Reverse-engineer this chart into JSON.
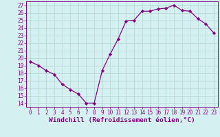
{
  "x": [
    0,
    1,
    2,
    3,
    4,
    5,
    6,
    7,
    8,
    9,
    10,
    11,
    12,
    13,
    14,
    15,
    16,
    17,
    18,
    19,
    20,
    21,
    22,
    23
  ],
  "y": [
    19.5,
    19.0,
    18.3,
    17.8,
    16.5,
    15.8,
    15.2,
    14.0,
    14.0,
    18.3,
    20.5,
    22.5,
    24.9,
    25.0,
    26.2,
    26.2,
    26.5,
    26.6,
    27.0,
    26.3,
    26.2,
    25.2,
    24.5,
    23.3
  ],
  "line_color": "#880088",
  "marker": "D",
  "marker_size": 2.2,
  "bg_color": "#d5f0f0",
  "grid_color": "#b8d8d8",
  "xlabel": "Windchill (Refroidissement éolien,°C)",
  "ylabel_ticks": [
    14,
    15,
    16,
    17,
    18,
    19,
    20,
    21,
    22,
    23,
    24,
    25,
    26,
    27
  ],
  "xlim": [
    -0.5,
    23.5
  ],
  "ylim": [
    13.5,
    27.5
  ],
  "tick_fontsize": 5.5,
  "label_fontsize": 6.8
}
